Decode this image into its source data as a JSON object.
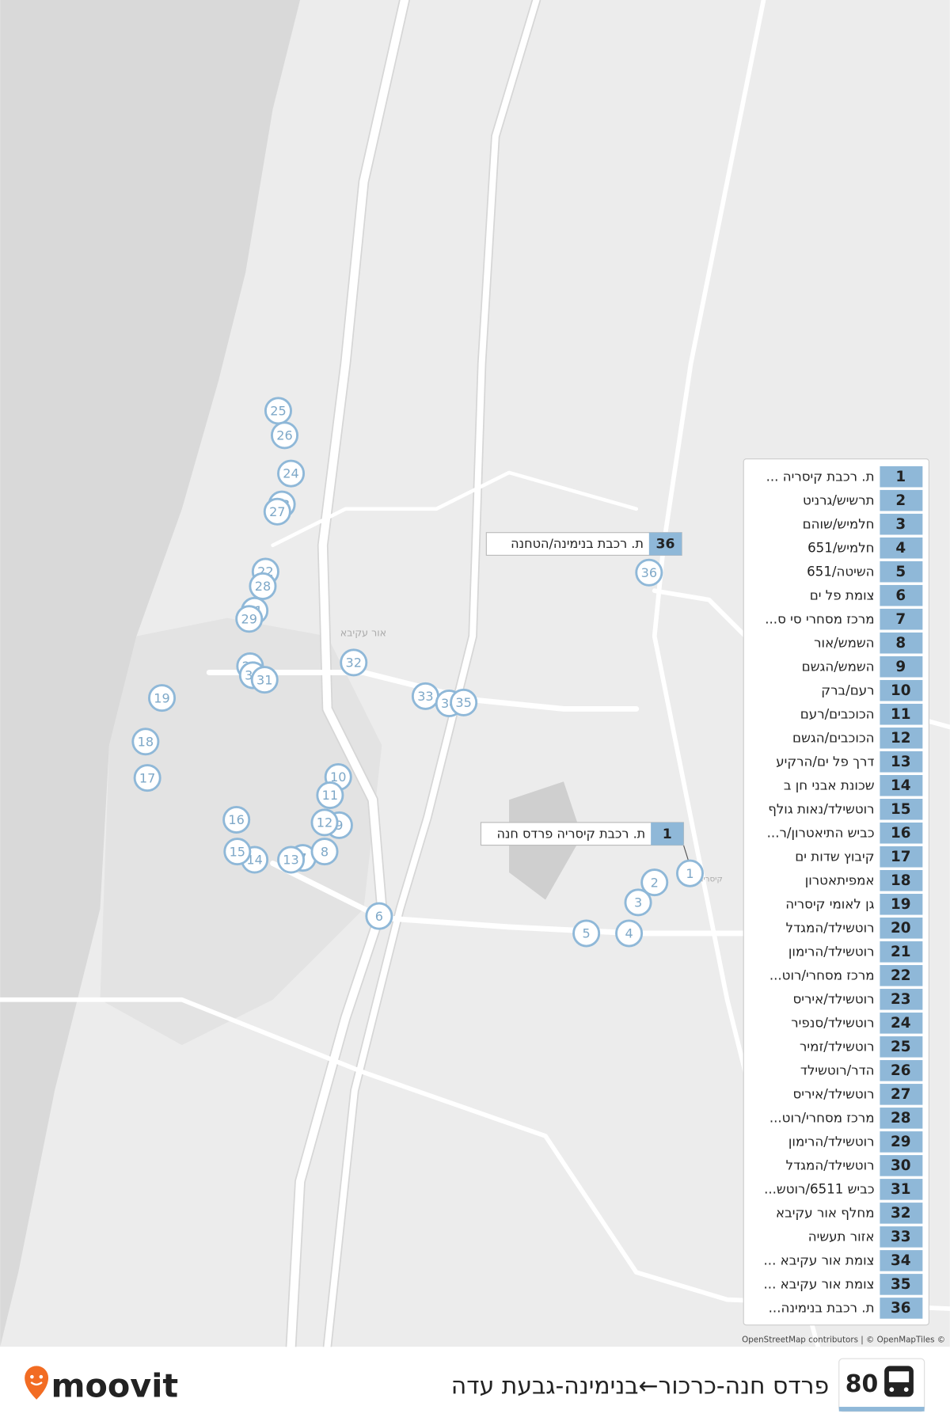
{
  "route": {
    "number": "80",
    "title": "פרדס חנה-כרכור←בנימינה-גבעת עדה"
  },
  "brand": "moovit",
  "attribution": "OpenStreetMap contributors | © OpenMapTiles ©",
  "map_labels": [
    "אור עקיבא",
    "קיסריה"
  ],
  "callouts": [
    {
      "stop": 36,
      "name": "ת. רכבת בנימינה/הטחנה"
    },
    {
      "stop": 1,
      "name": "ת. רכבת קיסריה פרדס חנה"
    }
  ],
  "stops": [
    {
      "number": "1",
      "name": "ת. רכבת קיסריה ..."
    },
    {
      "number": "2",
      "name": "תרשיש/גרניט"
    },
    {
      "number": "3",
      "name": "חלמיש/שוהם"
    },
    {
      "number": "4",
      "name": "חלמיש/651"
    },
    {
      "number": "5",
      "name": "השיטה/651"
    },
    {
      "number": "6",
      "name": "צומת פל ים"
    },
    {
      "number": "7",
      "name": "מרכז מסחרי סי ס..."
    },
    {
      "number": "8",
      "name": "השמש/אור"
    },
    {
      "number": "9",
      "name": "השמש/הגשם"
    },
    {
      "number": "10",
      "name": "רעם/ברק"
    },
    {
      "number": "11",
      "name": "הכוכבים/רעם"
    },
    {
      "number": "12",
      "name": "הכוכבים/הגשם"
    },
    {
      "number": "13",
      "name": "דרך פל ים/הרקיע"
    },
    {
      "number": "14",
      "name": "שכונת אבני חן ב"
    },
    {
      "number": "15",
      "name": "רוטשילד/נאות גולף"
    },
    {
      "number": "16",
      "name": "כביש התיאטרון/ר..."
    },
    {
      "number": "17",
      "name": "קיבוץ שדות ים"
    },
    {
      "number": "18",
      "name": "אמפיתאטרון"
    },
    {
      "number": "19",
      "name": "גן לאומי קיסריה"
    },
    {
      "number": "20",
      "name": "רוטשילד/המגדל"
    },
    {
      "number": "21",
      "name": "רוטשילד/הרימון"
    },
    {
      "number": "22",
      "name": "מרכז מסחרי/רוט..."
    },
    {
      "number": "23",
      "name": "רוטשילד/איריס"
    },
    {
      "number": "24",
      "name": "רוטשילד/סנפיר"
    },
    {
      "number": "25",
      "name": "רוטשילד/זמיר"
    },
    {
      "number": "26",
      "name": "הדר/רוטשילד"
    },
    {
      "number": "27",
      "name": "רוטשילד/איריס"
    },
    {
      "number": "28",
      "name": "מרכז מסחרי/רוט..."
    },
    {
      "number": "29",
      "name": "רוטשילד/הרימון"
    },
    {
      "number": "30",
      "name": "רוטשילד/המגדל"
    },
    {
      "number": "31",
      "name": "כביש 6511/רוטש..."
    },
    {
      "number": "32",
      "name": "מחלף אור עקיבא"
    },
    {
      "number": "33",
      "name": "אזור תעשיה"
    },
    {
      "number": "34",
      "name": "צומת אור עקיבא ..."
    },
    {
      "number": "35",
      "name": "צומת אור עקיבא ..."
    },
    {
      "number": "36",
      "name": "ת. רכבת בנימינה..."
    }
  ]
}
